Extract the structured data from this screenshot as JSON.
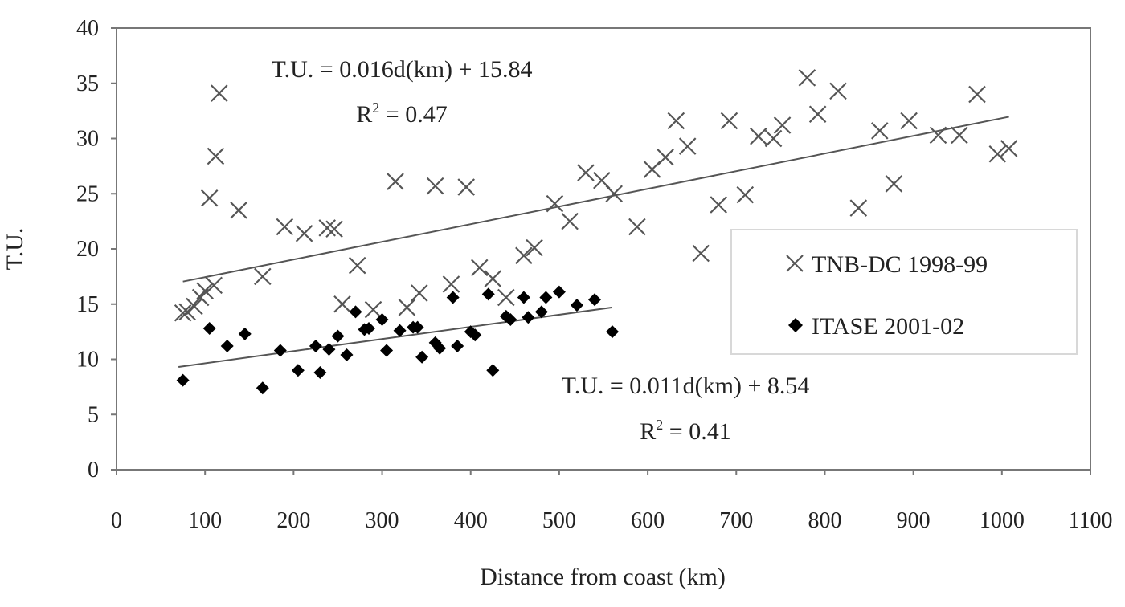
{
  "chart_data": {
    "type": "scatter",
    "title": "",
    "xlabel": "Distance from coast (km)",
    "ylabel": "T.U.",
    "xlim": [
      0,
      1100
    ],
    "ylim": [
      0,
      40
    ],
    "xticks": [
      0,
      100,
      200,
      300,
      400,
      500,
      600,
      700,
      800,
      900,
      1000,
      1100
    ],
    "yticks": [
      0,
      5,
      10,
      15,
      20,
      25,
      30,
      35,
      40
    ],
    "grid": false,
    "legend_position": "right",
    "series": [
      {
        "name": "TNB-DC 1998-99",
        "marker": "x",
        "color": "#555555",
        "x": [
          75,
          80,
          88,
          95,
          100,
          105,
          110,
          112,
          116,
          138,
          165,
          190,
          212,
          238,
          246,
          255,
          272,
          290,
          315,
          328,
          342,
          360,
          378,
          395,
          410,
          425,
          440,
          460,
          472,
          495,
          512,
          530,
          548,
          562,
          588,
          605,
          620,
          632,
          645,
          660,
          680,
          692,
          710,
          725,
          742,
          752,
          780,
          792,
          815,
          838,
          862,
          878,
          895,
          928,
          952,
          972,
          995,
          1008
        ],
        "y": [
          14.2,
          14.3,
          14.8,
          15.6,
          16.2,
          24.6,
          16.7,
          28.4,
          34.1,
          23.5,
          17.5,
          22.0,
          21.4,
          21.9,
          21.8,
          15.0,
          18.5,
          14.5,
          26.1,
          14.7,
          16.0,
          25.7,
          16.8,
          25.6,
          18.3,
          17.3,
          15.6,
          19.4,
          20.1,
          24.1,
          22.5,
          26.9,
          26.2,
          25.0,
          22.0,
          27.2,
          28.3,
          31.6,
          29.3,
          19.6,
          24.0,
          31.6,
          24.9,
          30.2,
          30.0,
          31.2,
          35.5,
          32.2,
          34.3,
          23.7,
          30.7,
          25.9,
          31.6,
          30.3,
          30.3,
          34.0,
          28.6,
          29.1
        ]
      },
      {
        "name": "ITASE 2001-02",
        "marker": "diamond",
        "color": "#000000",
        "x": [
          75,
          105,
          125,
          145,
          165,
          185,
          205,
          225,
          230,
          240,
          250,
          260,
          270,
          280,
          285,
          300,
          305,
          320,
          335,
          340,
          345,
          360,
          365,
          380,
          385,
          400,
          405,
          420,
          425,
          440,
          445,
          460,
          465,
          480,
          485,
          500,
          520,
          540,
          560
        ],
        "y": [
          8.1,
          12.8,
          11.2,
          12.3,
          7.4,
          10.8,
          9.0,
          11.2,
          8.8,
          10.9,
          12.1,
          10.4,
          14.3,
          12.7,
          12.8,
          13.6,
          10.8,
          12.6,
          12.9,
          12.9,
          10.2,
          11.5,
          11.0,
          15.6,
          11.2,
          12.5,
          12.2,
          15.9,
          9.0,
          13.9,
          13.6,
          15.6,
          13.8,
          14.3,
          15.6,
          16.1,
          14.9,
          15.4,
          12.5
        ]
      }
    ],
    "trendlines": [
      {
        "series": "TNB-DC 1998-99",
        "slope": 0.016,
        "intercept": 15.84,
        "x_range": [
          75,
          1008
        ]
      },
      {
        "series": "ITASE 2001-02",
        "slope": 0.011,
        "intercept": 8.54,
        "x_range": [
          70,
          560
        ]
      }
    ],
    "annotations": {
      "tnb_equation": "T.U. = 0.016d(km) + 15.84",
      "tnb_r2_prefix": "R",
      "tnb_r2_value": " = 0.47",
      "itase_equation": "T.U. = 0.011d(km) + 8.54",
      "itase_r2_prefix": "R",
      "itase_r2_value": " = 0.41",
      "r2_superscript": "2"
    }
  }
}
